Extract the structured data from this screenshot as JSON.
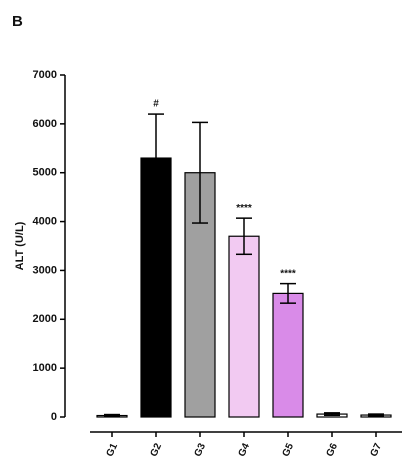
{
  "chart_data": {
    "type": "bar",
    "panel_label": "B",
    "y_label": "ALT (U/L)",
    "categories": [
      "G1",
      "G2",
      "G3",
      "G4",
      "G5",
      "G6",
      "G7"
    ],
    "values": [
      30,
      5300,
      5000,
      3700,
      2530,
      60,
      40
    ],
    "errors": [
      20,
      900,
      1030,
      370,
      200,
      25,
      20
    ],
    "colors": [
      "#ffffff",
      "#000000",
      "#a0a0a0",
      "#f2caf2",
      "#d98be8",
      "#ffffff",
      "#ffffff"
    ],
    "annotations": [
      null,
      "#",
      null,
      "****",
      "****",
      null,
      null
    ],
    "ylim": [
      0,
      7000
    ],
    "yticks": [
      0,
      1000,
      2000,
      3000,
      4000,
      5000,
      6000,
      7000
    ]
  }
}
